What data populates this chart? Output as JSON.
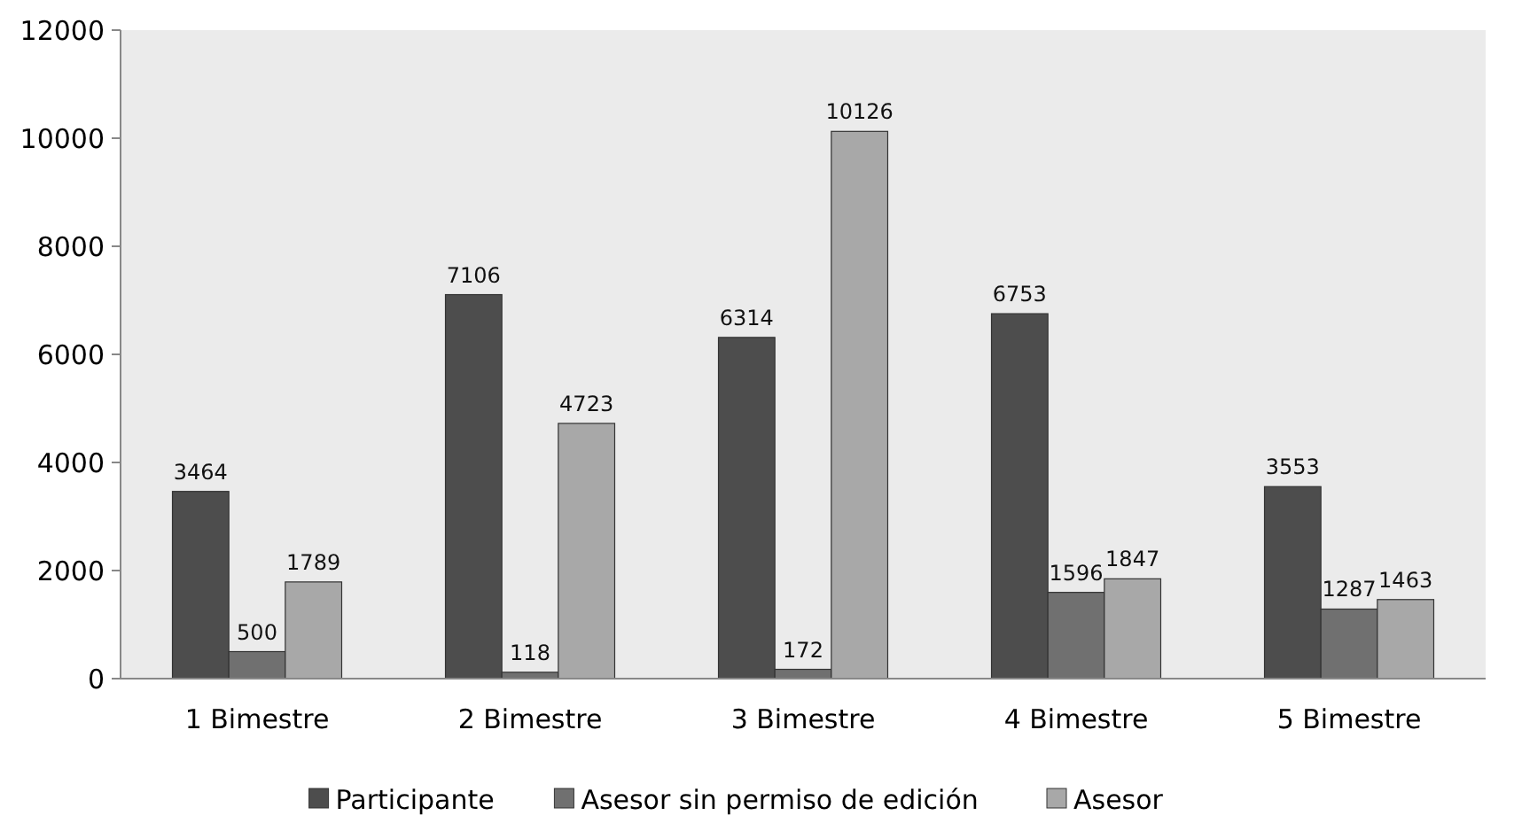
{
  "chart_data": {
    "type": "bar",
    "categories": [
      "1 Bimestre",
      "2 Bimestre",
      "3 Bimestre",
      "4 Bimestre",
      "5 Bimestre"
    ],
    "series": [
      {
        "name": "Participante",
        "color": "#4d4d4d",
        "values": [
          3464,
          7106,
          6314,
          6753,
          3553
        ]
      },
      {
        "name": "Asesor sin permiso de edición",
        "color": "#707070",
        "values": [
          500,
          118,
          172,
          1596,
          1287
        ]
      },
      {
        "name": "Asesor",
        "color": "#a8a8a8",
        "values": [
          1789,
          4723,
          10126,
          1847,
          1463
        ]
      }
    ],
    "ylim": [
      0,
      12000
    ],
    "yticks": [
      0,
      2000,
      4000,
      6000,
      8000,
      10000,
      12000
    ],
    "grid": false,
    "legend": "bottom",
    "data_labels": true
  }
}
